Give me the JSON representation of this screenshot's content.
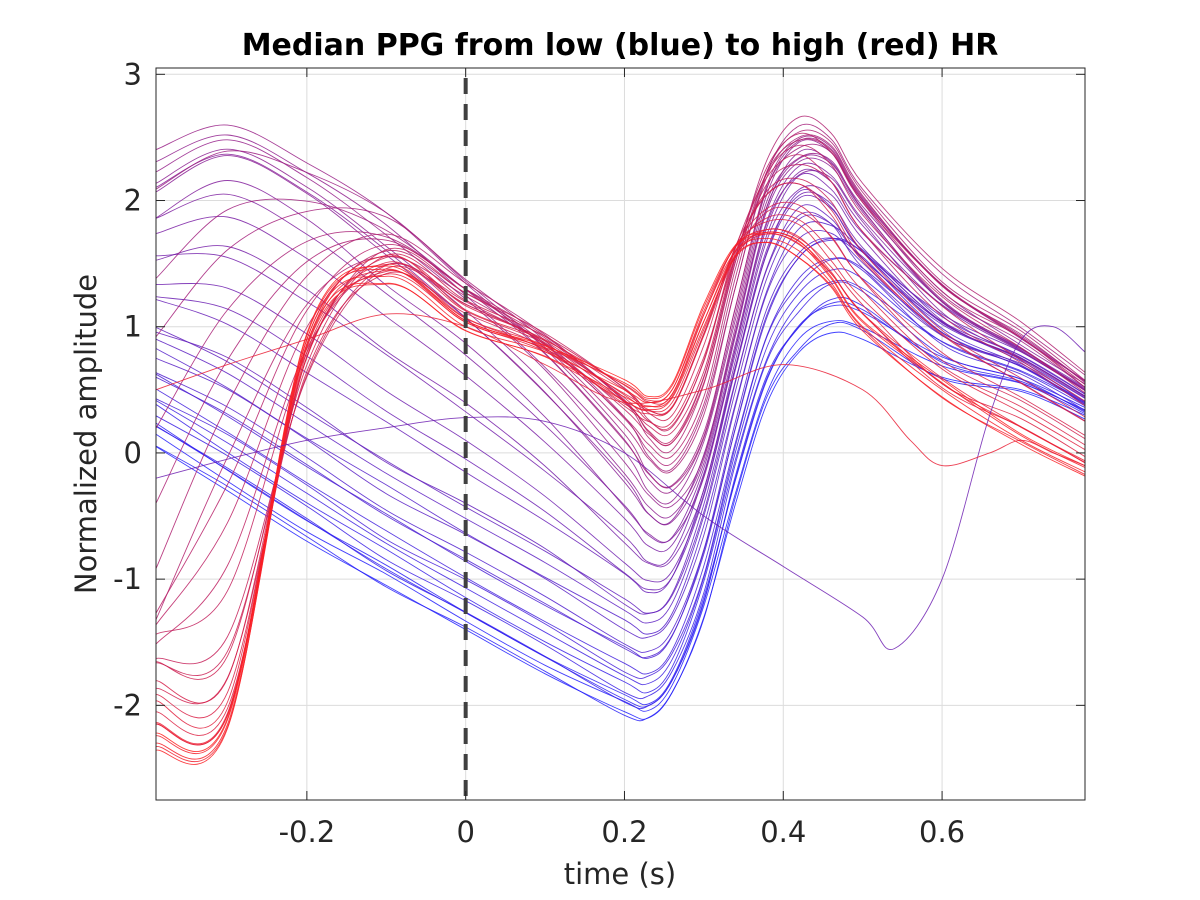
{
  "chart_data": {
    "type": "line",
    "title": "Median PPG from low (blue) to high (red) HR",
    "xlabel": "time (s)",
    "ylabel": "Normalized amplitude",
    "xlim": [
      -0.39,
      0.78
    ],
    "ylim": [
      -2.75,
      3.05
    ],
    "xticks": [
      -0.2,
      0,
      0.2,
      0.4,
      0.6
    ],
    "xtick_labels": [
      "-0.2",
      "0",
      "0.2",
      "0.4",
      "0.6"
    ],
    "yticks": [
      -2,
      -1,
      0,
      1,
      2,
      3
    ],
    "ytick_labels": [
      "-2",
      "-1",
      "0",
      "1",
      "2",
      "3"
    ],
    "grid": true,
    "vertical_marker": {
      "x": 0,
      "style": "dashed",
      "color": "#404040"
    },
    "color_scale": {
      "low": "#1f1fff",
      "high": "#ff1f1f",
      "meaning": "low (blue) to high (red) HR"
    },
    "series_count": 60,
    "representative_series": [
      {
        "hr_rank": 0.0,
        "x": [
          -0.39,
          -0.3,
          -0.2,
          -0.1,
          0,
          0.1,
          0.2,
          0.23,
          0.26,
          0.3,
          0.34,
          0.38,
          0.42,
          0.46,
          0.5,
          0.6,
          0.7,
          0.78
        ],
        "y": [
          0.05,
          -0.3,
          -0.7,
          -1.05,
          -1.4,
          -1.75,
          -2.05,
          -2.1,
          -1.9,
          -1.3,
          -0.4,
          0.4,
          0.8,
          0.95,
          0.9,
          0.6,
          0.5,
          0.3
        ]
      },
      {
        "hr_rank": 0.1,
        "x": [
          -0.39,
          -0.3,
          -0.2,
          -0.1,
          0,
          0.1,
          0.2,
          0.23,
          0.26,
          0.3,
          0.34,
          0.38,
          0.42,
          0.46,
          0.5,
          0.6,
          0.7,
          0.78
        ],
        "y": [
          0.3,
          -0.05,
          -0.45,
          -0.85,
          -1.2,
          -1.55,
          -1.9,
          -1.95,
          -1.75,
          -1.1,
          -0.1,
          0.7,
          1.1,
          1.3,
          1.25,
          0.8,
          0.6,
          0.35
        ]
      },
      {
        "hr_rank": 0.2,
        "x": [
          -0.39,
          -0.3,
          -0.2,
          -0.1,
          0,
          0.1,
          0.2,
          0.23,
          0.26,
          0.3,
          0.34,
          0.38,
          0.42,
          0.46,
          0.5,
          0.6,
          0.7,
          0.78
        ],
        "y": [
          0.6,
          0.3,
          -0.1,
          -0.5,
          -0.85,
          -1.2,
          -1.55,
          -1.62,
          -1.45,
          -0.8,
          0.2,
          1.1,
          1.55,
          1.7,
          1.6,
          1.0,
          0.7,
          0.4
        ]
      },
      {
        "hr_rank": 0.3,
        "x": [
          -0.39,
          -0.3,
          -0.2,
          -0.1,
          0,
          0.1,
          0.2,
          0.23,
          0.26,
          0.3,
          0.34,
          0.38,
          0.42,
          0.46,
          0.5,
          0.6,
          0.7,
          0.78
        ],
        "y": [
          1.0,
          0.75,
          0.35,
          -0.05,
          -0.4,
          -0.75,
          -1.15,
          -1.25,
          -1.1,
          -0.4,
          0.6,
          1.5,
          1.95,
          1.85,
          1.5,
          1.0,
          0.75,
          0.45
        ]
      },
      {
        "hr_rank": 0.45,
        "x": [
          -0.39,
          -0.3,
          -0.2,
          -0.1,
          0,
          0.1,
          0.2,
          0.23,
          0.26,
          0.3,
          0.34,
          0.38,
          0.42,
          0.46,
          0.5,
          0.6,
          0.7,
          0.78
        ],
        "y": [
          2.0,
          2.3,
          2.0,
          1.5,
          1.0,
          0.4,
          -0.3,
          -0.55,
          -0.6,
          -0.1,
          0.9,
          1.9,
          2.3,
          2.25,
          1.9,
          1.2,
          0.8,
          0.5
        ]
      },
      {
        "hr_rank": 0.55,
        "x": [
          -0.39,
          -0.3,
          -0.2,
          -0.1,
          0,
          0.1,
          0.2,
          0.23,
          0.26,
          0.3,
          0.34,
          0.38,
          0.42,
          0.46,
          0.5,
          0.6,
          0.7,
          0.78
        ],
        "y": [
          2.4,
          2.6,
          2.3,
          1.9,
          1.35,
          0.8,
          0.1,
          -0.2,
          -0.3,
          0.1,
          1.1,
          2.1,
          2.45,
          2.4,
          2.0,
          1.3,
          0.9,
          0.55
        ]
      },
      {
        "hr_rank": 0.65,
        "x": [
          -0.39,
          -0.3,
          -0.2,
          -0.1,
          0,
          0.1,
          0.2,
          0.23,
          0.26,
          0.3,
          0.34,
          0.38,
          0.42,
          0.46,
          0.5,
          0.6,
          0.7,
          0.78
        ],
        "y": [
          -1.2,
          0.2,
          1.3,
          1.65,
          1.3,
          0.9,
          0.35,
          0.1,
          0.0,
          0.5,
          1.5,
          2.3,
          2.6,
          2.5,
          2.1,
          1.4,
          1.0,
          0.6
        ]
      },
      {
        "hr_rank": 0.75,
        "x": [
          -0.39,
          -0.3,
          -0.2,
          -0.1,
          0,
          0.1,
          0.2,
          0.23,
          0.26,
          0.3,
          0.34,
          0.38,
          0.42,
          0.46,
          0.5,
          0.6,
          0.7,
          0.78
        ],
        "y": [
          -1.6,
          -1.5,
          0.6,
          1.5,
          1.2,
          0.9,
          0.45,
          0.25,
          0.2,
          0.7,
          1.6,
          2.1,
          2.2,
          2.0,
          1.6,
          1.0,
          0.6,
          0.3
        ]
      },
      {
        "hr_rank": 0.85,
        "x": [
          -0.39,
          -0.3,
          -0.2,
          -0.1,
          0,
          0.1,
          0.2,
          0.23,
          0.26,
          0.3,
          0.34,
          0.38,
          0.42,
          0.46,
          0.5,
          0.6,
          0.7,
          0.78
        ],
        "y": [
          -2.0,
          -2.0,
          0.8,
          1.5,
          1.1,
          0.85,
          0.45,
          0.35,
          0.4,
          1.0,
          1.6,
          1.8,
          1.75,
          1.5,
          1.2,
          0.6,
          0.3,
          0.0
        ]
      },
      {
        "hr_rank": 0.95,
        "x": [
          -0.39,
          -0.3,
          -0.2,
          -0.1,
          0,
          0.1,
          0.2,
          0.23,
          0.26,
          0.3,
          0.34,
          0.38,
          0.42,
          0.46,
          0.5,
          0.6,
          0.7,
          0.78
        ],
        "y": [
          -2.3,
          -2.15,
          0.9,
          1.4,
          1.0,
          0.8,
          0.5,
          0.4,
          0.5,
          1.1,
          1.6,
          1.7,
          1.6,
          1.35,
          1.0,
          0.5,
          0.1,
          -0.15
        ]
      },
      {
        "hr_rank": 0.35,
        "x": [
          -0.39,
          -0.3,
          -0.2,
          -0.1,
          0,
          0.1,
          0.2,
          0.3,
          0.4,
          0.5,
          0.54,
          0.6,
          0.66,
          0.7,
          0.74,
          0.78
        ],
        "y": [
          -0.2,
          -0.05,
          0.1,
          0.2,
          0.28,
          0.25,
          0.0,
          -0.5,
          -0.9,
          -1.3,
          -1.55,
          -1.0,
          0.3,
          0.9,
          1.0,
          0.8
        ]
      },
      {
        "hr_rank": 0.9,
        "x": [
          -0.39,
          -0.3,
          -0.2,
          -0.1,
          0,
          0.1,
          0.2,
          0.3,
          0.4,
          0.5,
          0.56,
          0.6,
          0.66,
          0.7,
          0.74,
          0.78
        ],
        "y": [
          0.5,
          0.7,
          0.9,
          1.1,
          1.0,
          0.7,
          0.4,
          0.5,
          0.7,
          0.5,
          0.1,
          -0.1,
          0.0,
          0.1,
          0.0,
          -0.1
        ]
      }
    ]
  }
}
